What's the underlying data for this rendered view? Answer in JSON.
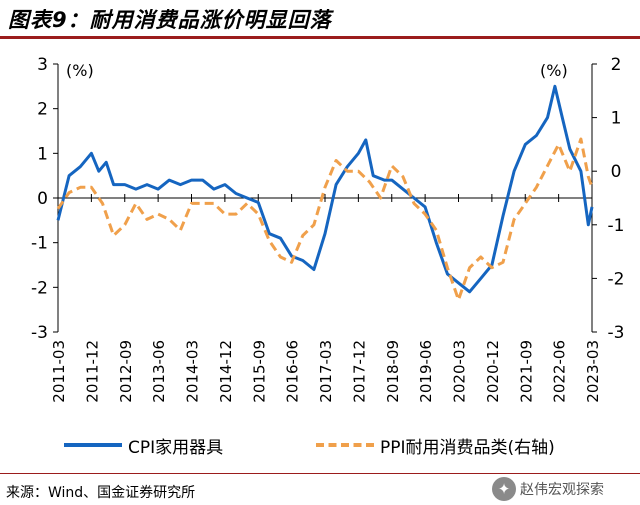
{
  "title": "图表9：耐用消费品涨价明显回落",
  "source": "来源：Wind、国金证券研究所",
  "watermark": "赵伟宏观探索",
  "colors": {
    "cpi": "#1565c0",
    "ppi": "#f0a04b",
    "title_rule": "#9b1c1c"
  },
  "chart_data": {
    "type": "line",
    "left_axis": {
      "unit": "(%)",
      "ylim": [
        -3,
        3
      ],
      "ticks": [
        3,
        2,
        1,
        0,
        -1,
        -2,
        -3
      ]
    },
    "right_axis": {
      "unit": "(%)",
      "ylim": [
        -3,
        2
      ],
      "ticks": [
        2,
        1,
        0,
        -1,
        -2,
        -3
      ]
    },
    "x_ticks": [
      "2011-03",
      "2011-12",
      "2012-09",
      "2013-06",
      "2014-03",
      "2014-12",
      "2015-09",
      "2016-06",
      "2017-03",
      "2017-12",
      "2018-09",
      "2019-06",
      "2020-03",
      "2020-12",
      "2021-09",
      "2022-06",
      "2023-03"
    ],
    "x_start": "2011-03",
    "series": [
      {
        "name": "CPI家用器具",
        "axis": "left",
        "style": "solid",
        "points": [
          [
            "2011-03",
            -0.5
          ],
          [
            "2011-06",
            0.5
          ],
          [
            "2011-09",
            0.7
          ],
          [
            "2011-12",
            1.0
          ],
          [
            "2012-02",
            0.6
          ],
          [
            "2012-04",
            0.8
          ],
          [
            "2012-06",
            0.3
          ],
          [
            "2012-09",
            0.3
          ],
          [
            "2012-12",
            0.2
          ],
          [
            "2013-03",
            0.3
          ],
          [
            "2013-06",
            0.2
          ],
          [
            "2013-09",
            0.4
          ],
          [
            "2013-12",
            0.3
          ],
          [
            "2014-03",
            0.4
          ],
          [
            "2014-06",
            0.4
          ],
          [
            "2014-09",
            0.2
          ],
          [
            "2014-12",
            0.3
          ],
          [
            "2015-03",
            0.1
          ],
          [
            "2015-06",
            0.0
          ],
          [
            "2015-09",
            -0.1
          ],
          [
            "2015-12",
            -0.8
          ],
          [
            "2016-03",
            -0.9
          ],
          [
            "2016-06",
            -1.3
          ],
          [
            "2016-09",
            -1.4
          ],
          [
            "2016-12",
            -1.6
          ],
          [
            "2017-03",
            -0.8
          ],
          [
            "2017-06",
            0.3
          ],
          [
            "2017-09",
            0.7
          ],
          [
            "2017-12",
            1.0
          ],
          [
            "2018-02",
            1.3
          ],
          [
            "2018-04",
            0.5
          ],
          [
            "2018-07",
            0.4
          ],
          [
            "2018-09",
            0.4
          ],
          [
            "2018-12",
            0.2
          ],
          [
            "2019-03",
            0.0
          ],
          [
            "2019-06",
            -0.2
          ],
          [
            "2019-09",
            -1.0
          ],
          [
            "2019-12",
            -1.7
          ],
          [
            "2020-03",
            -1.9
          ],
          [
            "2020-06",
            -2.1
          ],
          [
            "2020-09",
            -1.8
          ],
          [
            "2020-12",
            -1.5
          ],
          [
            "2021-03",
            -0.4
          ],
          [
            "2021-06",
            0.6
          ],
          [
            "2021-09",
            1.2
          ],
          [
            "2021-12",
            1.4
          ],
          [
            "2022-03",
            1.8
          ],
          [
            "2022-05",
            2.5
          ],
          [
            "2022-07",
            1.8
          ],
          [
            "2022-09",
            1.1
          ],
          [
            "2022-12",
            0.6
          ],
          [
            "2023-02",
            -0.6
          ],
          [
            "2023-03",
            -0.2
          ]
        ]
      },
      {
        "name": "PPI耐用消费品类(右轴)",
        "axis": "right",
        "style": "dashed",
        "points": [
          [
            "2011-03",
            -0.7
          ],
          [
            "2011-06",
            -0.4
          ],
          [
            "2011-09",
            -0.3
          ],
          [
            "2011-12",
            -0.3
          ],
          [
            "2012-03",
            -0.6
          ],
          [
            "2012-06",
            -1.2
          ],
          [
            "2012-09",
            -1.0
          ],
          [
            "2012-12",
            -0.6
          ],
          [
            "2013-03",
            -0.9
          ],
          [
            "2013-06",
            -0.8
          ],
          [
            "2013-09",
            -0.9
          ],
          [
            "2013-12",
            -1.1
          ],
          [
            "2014-03",
            -0.6
          ],
          [
            "2014-06",
            -0.6
          ],
          [
            "2014-09",
            -0.6
          ],
          [
            "2014-12",
            -0.8
          ],
          [
            "2015-03",
            -0.8
          ],
          [
            "2015-06",
            -0.6
          ],
          [
            "2015-09",
            -0.8
          ],
          [
            "2015-12",
            -1.3
          ],
          [
            "2016-03",
            -1.6
          ],
          [
            "2016-06",
            -1.7
          ],
          [
            "2016-09",
            -1.2
          ],
          [
            "2016-12",
            -1.0
          ],
          [
            "2017-03",
            -0.3
          ],
          [
            "2017-06",
            0.2
          ],
          [
            "2017-09",
            0.0
          ],
          [
            "2017-12",
            0.0
          ],
          [
            "2018-03",
            -0.2
          ],
          [
            "2018-06",
            -0.5
          ],
          [
            "2018-09",
            0.1
          ],
          [
            "2018-12",
            -0.1
          ],
          [
            "2019-03",
            -0.6
          ],
          [
            "2019-06",
            -0.8
          ],
          [
            "2019-09",
            -1.1
          ],
          [
            "2019-12",
            -1.8
          ],
          [
            "2020-03",
            -2.4
          ],
          [
            "2020-06",
            -1.8
          ],
          [
            "2020-09",
            -1.6
          ],
          [
            "2020-12",
            -1.8
          ],
          [
            "2021-03",
            -1.7
          ],
          [
            "2021-06",
            -0.9
          ],
          [
            "2021-09",
            -0.6
          ],
          [
            "2021-12",
            -0.3
          ],
          [
            "2022-03",
            0.1
          ],
          [
            "2022-06",
            0.5
          ],
          [
            "2022-09",
            0.0
          ],
          [
            "2022-12",
            0.6
          ],
          [
            "2023-02",
            -0.1
          ],
          [
            "2023-03",
            -0.3
          ]
        ]
      }
    ],
    "grid": false,
    "legend": "bottom"
  }
}
